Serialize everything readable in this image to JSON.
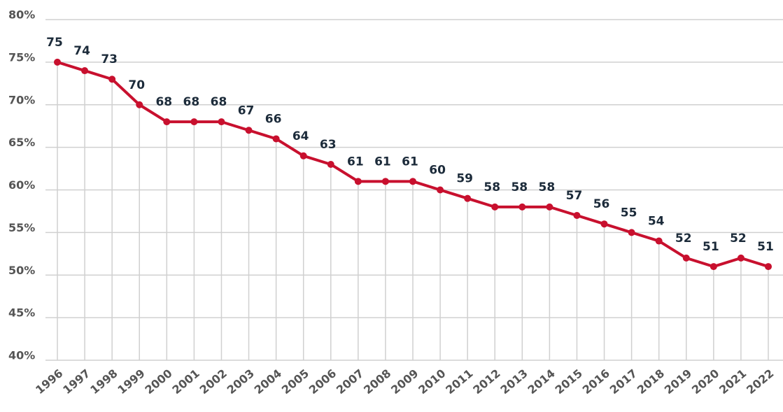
{
  "chart_data": {
    "type": "line",
    "categories": [
      "1996",
      "1997",
      "1998",
      "1999",
      "2000",
      "2001",
      "2002",
      "2003",
      "2004",
      "2005",
      "2006",
      "2007",
      "2008",
      "2009",
      "2010",
      "2011",
      "2012",
      "2013",
      "2014",
      "2015",
      "2016",
      "2017",
      "2018",
      "2019",
      "2020",
      "2021",
      "2022"
    ],
    "values": [
      75,
      74,
      73,
      70,
      68,
      68,
      68,
      67,
      66,
      64,
      63,
      61,
      61,
      61,
      60,
      59,
      58,
      58,
      58,
      57,
      56,
      55,
      54,
      52,
      51,
      52,
      51
    ],
    "color": "#c8102e",
    "ylim": [
      40,
      80
    ],
    "yticks": [
      {
        "value": 40,
        "label": "40%"
      },
      {
        "value": 45,
        "label": "45%"
      },
      {
        "value": 50,
        "label": "50%"
      },
      {
        "value": 55,
        "label": "55%"
      },
      {
        "value": 60,
        "label": "60%"
      },
      {
        "value": 65,
        "label": "65%"
      },
      {
        "value": 70,
        "label": "70%"
      },
      {
        "value": 75,
        "label": "75%"
      },
      {
        "value": 80,
        "label": "80%"
      }
    ],
    "grid": true
  }
}
